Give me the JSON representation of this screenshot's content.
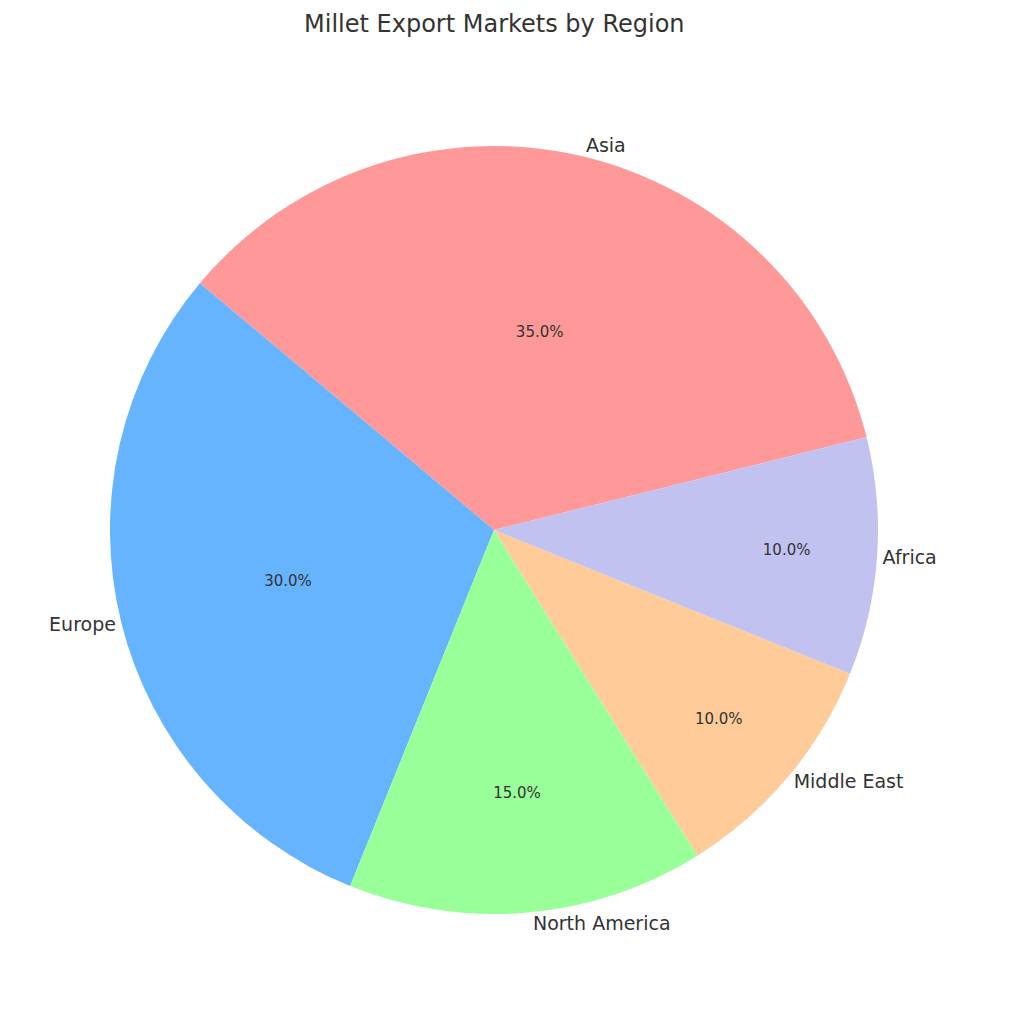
{
  "chart_data": {
    "type": "pie",
    "title": "Millet Export Markets by Region",
    "categories": [
      "Asia",
      "Europe",
      "North America",
      "Middle East",
      "Africa"
    ],
    "values": [
      35,
      30,
      15,
      10,
      10
    ],
    "value_labels": [
      "35.0%",
      "30.0%",
      "15.0%",
      "10.0%",
      "10.0%"
    ],
    "colors": [
      "#ff9999",
      "#66b3ff",
      "#99ff99",
      "#ffcc99",
      "#c2c2f0"
    ],
    "data_labels": true
  }
}
